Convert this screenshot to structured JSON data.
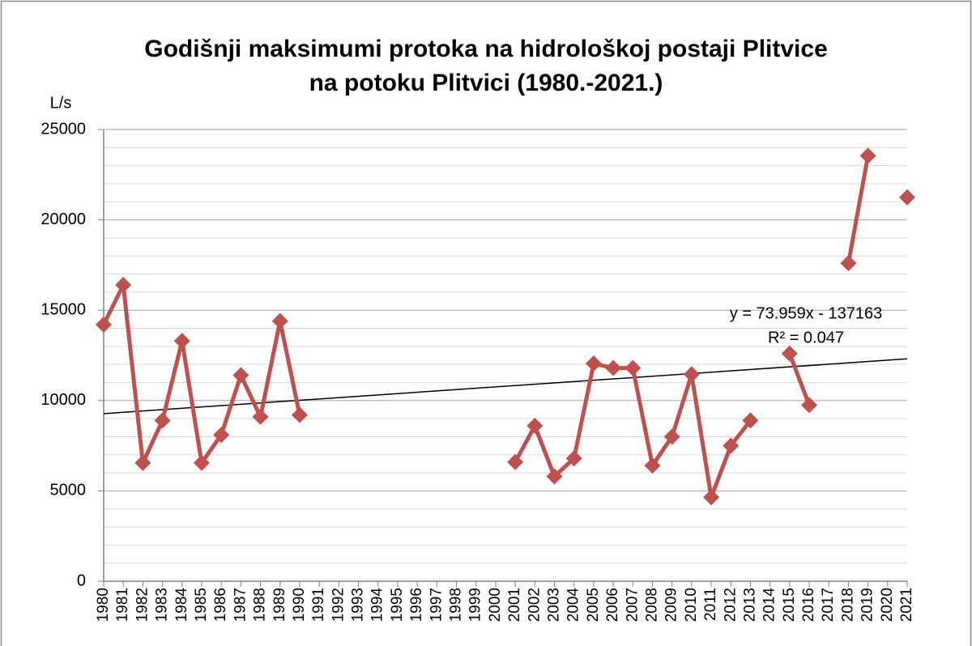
{
  "chart_data": {
    "type": "line",
    "title": [
      "Godišnji maksimumi protoka na hidrološkoj postaji Plitvice",
      "na potoku Plitvici  (1980.-2021.)"
    ],
    "y_label": "L/s",
    "categories": [
      "1980",
      "1981",
      "1982",
      "1983",
      "1984",
      "1985",
      "1986",
      "1987",
      "1988",
      "1989",
      "1990",
      "1991",
      "1992",
      "1993",
      "1994",
      "1995",
      "1996",
      "1997",
      "1998",
      "1999",
      "2000",
      "2001",
      "2002",
      "2003",
      "2004",
      "2005",
      "2006",
      "2007",
      "2008",
      "2009",
      "2010",
      "2011",
      "2012",
      "2013",
      "2014",
      "2015",
      "2016",
      "2017",
      "2018",
      "2019",
      "2020",
      "2021"
    ],
    "series": [
      {
        "color": "#c0504d",
        "values": [
          14200,
          16400,
          6550,
          8900,
          13300,
          6550,
          8100,
          11400,
          9100,
          14400,
          9200,
          null,
          null,
          null,
          null,
          null,
          null,
          null,
          null,
          null,
          null,
          6600,
          8600,
          5800,
          6800,
          12050,
          11800,
          11800,
          6400,
          8000,
          11450,
          4650,
          7500,
          8900,
          null,
          12600,
          9750,
          null,
          17600,
          23550,
          null,
          21250
        ]
      }
    ],
    "trendline": {
      "equation": "y = 73.959x - 137163",
      "r_squared": "R² = 0.047",
      "color": "#000000",
      "values": [
        9276,
        12308
      ]
    },
    "ylim": [
      0,
      25000
    ],
    "yticks": [
      0,
      5000,
      10000,
      15000,
      20000,
      25000
    ],
    "minor_gridlines": [
      1000,
      2000,
      3000,
      4000,
      6000,
      7000,
      8000,
      9000,
      11000,
      12000,
      13000,
      14000,
      16000,
      17000,
      18000,
      19000,
      21000,
      22000,
      23000,
      24000
    ],
    "grid": true
  }
}
